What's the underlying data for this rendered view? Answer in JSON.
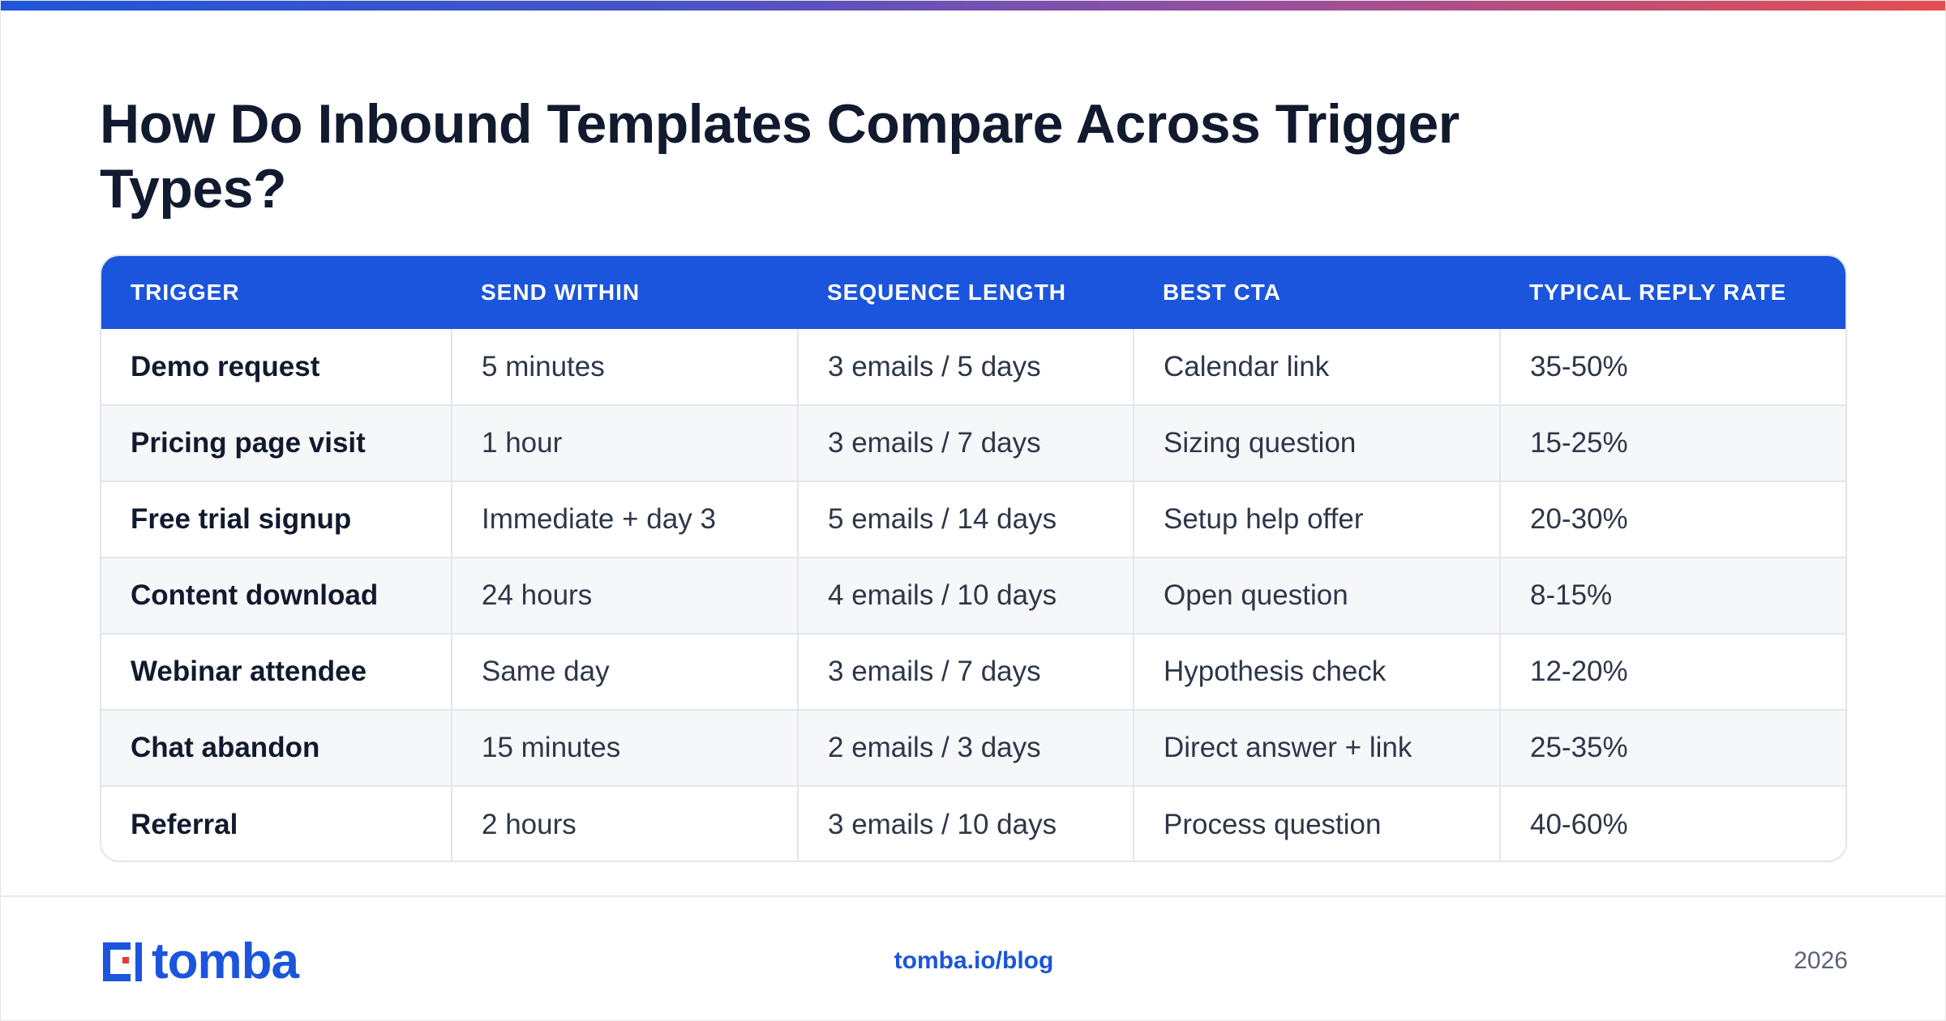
{
  "title": "How Do Inbound Templates Compare Across Trigger Types?",
  "table": {
    "headers": [
      "TRIGGER",
      "SEND WITHIN",
      "SEQUENCE LENGTH",
      "BEST CTA",
      "TYPICAL REPLY RATE"
    ],
    "rows": [
      [
        "Demo request",
        "5 minutes",
        "3 emails / 5 days",
        "Calendar link",
        "35-50%"
      ],
      [
        "Pricing page visit",
        "1 hour",
        "3 emails / 7 days",
        "Sizing question",
        "15-25%"
      ],
      [
        "Free trial signup",
        "Immediate + day 3",
        "5 emails / 14 days",
        "Setup help offer",
        "20-30%"
      ],
      [
        "Content download",
        "24 hours",
        "4 emails / 10 days",
        "Open question",
        "8-15%"
      ],
      [
        "Webinar attendee",
        "Same day",
        "3 emails / 7 days",
        "Hypothesis check",
        "12-20%"
      ],
      [
        "Chat abandon",
        "15 minutes",
        "2 emails / 3 days",
        "Direct answer + link",
        "25-35%"
      ],
      [
        "Referral",
        "2 hours",
        "3 emails / 10 days",
        "Process question",
        "40-60%"
      ]
    ]
  },
  "footer": {
    "logo_text": "tomba",
    "link": "tomba.io/blog",
    "year": "2026"
  },
  "colors": {
    "accent": "#1b55dd",
    "logo_red": "#e53935",
    "gradient_start": "#1f56d8",
    "gradient_end": "#e54e4f"
  },
  "icons": {
    "logo": "tomba-logo-icon"
  }
}
